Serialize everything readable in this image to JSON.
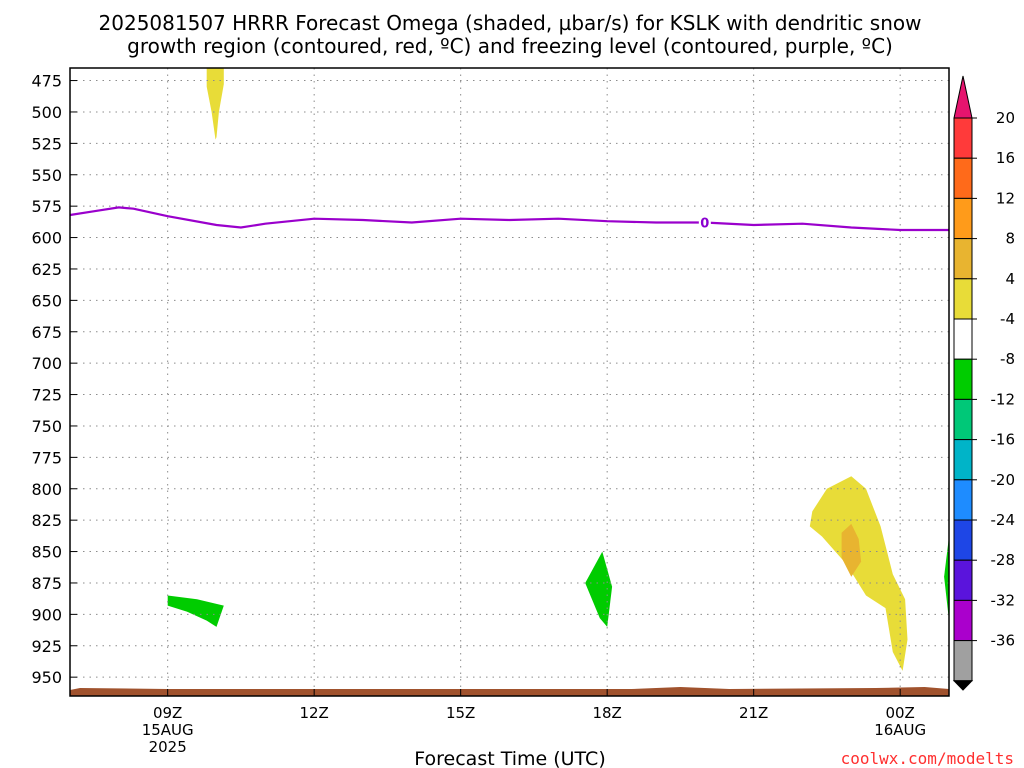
{
  "title_line1": "2025081507 HRRR Forecast Omega (shaded, µbar/s) for KSLK with dendritic snow",
  "title_line2": "growth region (contoured, red, ºC) and freezing level (contoured, purple, ºC)",
  "credit": "coolwx.com/modelts",
  "chart_data": {
    "type": "contour",
    "title": "2025081507 HRRR Forecast Omega (shaded, µbar/s) for KSLK with dendritic snow growth region (contoured, red, ºC) and freezing level (contoured, purple, ºC)",
    "xlabel": "Forecast Time (UTC)",
    "ylabel": "",
    "x_units": "hours since 2025-08-15 07Z",
    "xlim": [
      0,
      18
    ],
    "ylim": [
      965,
      465
    ],
    "y_ticks": [
      475,
      500,
      525,
      550,
      575,
      600,
      625,
      650,
      675,
      700,
      725,
      750,
      775,
      800,
      825,
      850,
      875,
      900,
      925,
      950
    ],
    "x_ticks": [
      {
        "x": 2,
        "lines": [
          "09Z",
          "15AUG",
          "2025"
        ]
      },
      {
        "x": 5,
        "lines": [
          "12Z"
        ]
      },
      {
        "x": 8,
        "lines": [
          "15Z"
        ]
      },
      {
        "x": 11,
        "lines": [
          "18Z"
        ]
      },
      {
        "x": 14,
        "lines": [
          "21Z"
        ]
      },
      {
        "x": 17,
        "lines": [
          "00Z",
          "16AUG"
        ]
      }
    ],
    "grid": true,
    "colorbar": {
      "labels": [
        "20",
        "16",
        "12",
        "8",
        "4",
        "-4",
        "-8",
        "-12",
        "-16",
        "-20",
        "-24",
        "-28",
        "-32",
        "-36"
      ],
      "colors": [
        "#e6146e",
        "#ff3a3a",
        "#ff6a1a",
        "#ff9b1a",
        "#e8b430",
        "#e8dc38",
        "#ffffff",
        "#00cc00",
        "#00c878",
        "#00b4c8",
        "#1e8cff",
        "#1e46e6",
        "#5a14dc",
        "#aa00cc",
        "#a0a0a0",
        "#000000"
      ]
    },
    "freezing_level": {
      "label": "0",
      "label_x": 13.0,
      "color": "#9a00cc",
      "points": [
        [
          0,
          582
        ],
        [
          0.5,
          579
        ],
        [
          1,
          576
        ],
        [
          1.3,
          577
        ],
        [
          2,
          583
        ],
        [
          3,
          590
        ],
        [
          3.5,
          592
        ],
        [
          4,
          589
        ],
        [
          5,
          585
        ],
        [
          6,
          586
        ],
        [
          7,
          588
        ],
        [
          8,
          585
        ],
        [
          9,
          586
        ],
        [
          10,
          585
        ],
        [
          11,
          587
        ],
        [
          12,
          588
        ],
        [
          13,
          588
        ],
        [
          14,
          590
        ],
        [
          15,
          589
        ],
        [
          16,
          592
        ],
        [
          17,
          594
        ],
        [
          18,
          594
        ]
      ]
    },
    "omega_regions": [
      {
        "value_range": [
          4,
          8
        ],
        "color": "#e8dc38",
        "points": [
          [
            2.8,
            465
          ],
          [
            3.15,
            465
          ],
          [
            3.15,
            478
          ],
          [
            3.05,
            500
          ],
          [
            3.0,
            520
          ],
          [
            2.98,
            522
          ],
          [
            2.9,
            500
          ],
          [
            2.8,
            480
          ]
        ]
      },
      {
        "value_range": [
          4,
          8
        ],
        "color": "#e8dc38",
        "points": [
          [
            15.2,
            818
          ],
          [
            15.5,
            800
          ],
          [
            16.0,
            790
          ],
          [
            16.3,
            800
          ],
          [
            16.6,
            830
          ],
          [
            16.85,
            868
          ],
          [
            17.1,
            888
          ],
          [
            17.15,
            920
          ],
          [
            17.05,
            945
          ],
          [
            16.85,
            930
          ],
          [
            16.7,
            895
          ],
          [
            16.3,
            885
          ],
          [
            15.9,
            860
          ],
          [
            15.4,
            838
          ],
          [
            15.15,
            830
          ]
        ]
      },
      {
        "value_range": [
          8,
          12
        ],
        "color": "#e8b430",
        "points": [
          [
            15.8,
            835
          ],
          [
            16.0,
            828
          ],
          [
            16.15,
            840
          ],
          [
            16.2,
            858
          ],
          [
            16.0,
            870
          ],
          [
            15.8,
            855
          ]
        ]
      },
      {
        "value_range": [
          -8,
          -4
        ],
        "color": "#00cc00",
        "points": [
          [
            2.0,
            885
          ],
          [
            2.6,
            888
          ],
          [
            3.15,
            893
          ],
          [
            3.0,
            910
          ],
          [
            2.8,
            905
          ],
          [
            2.4,
            898
          ],
          [
            2.0,
            893
          ]
        ]
      },
      {
        "value_range": [
          -8,
          -4
        ],
        "color": "#00cc00",
        "points": [
          [
            10.55,
            875
          ],
          [
            10.9,
            850
          ],
          [
            11.1,
            878
          ],
          [
            11.0,
            910
          ],
          [
            10.85,
            903
          ]
        ]
      },
      {
        "value_range": [
          -8,
          -4
        ],
        "color": "#00cc00",
        "points": [
          [
            18.0,
            838
          ],
          [
            17.9,
            870
          ],
          [
            18.0,
            905
          ]
        ]
      }
    ],
    "terrain": {
      "color": "#a0522d",
      "surface_pressure": 965
    }
  }
}
